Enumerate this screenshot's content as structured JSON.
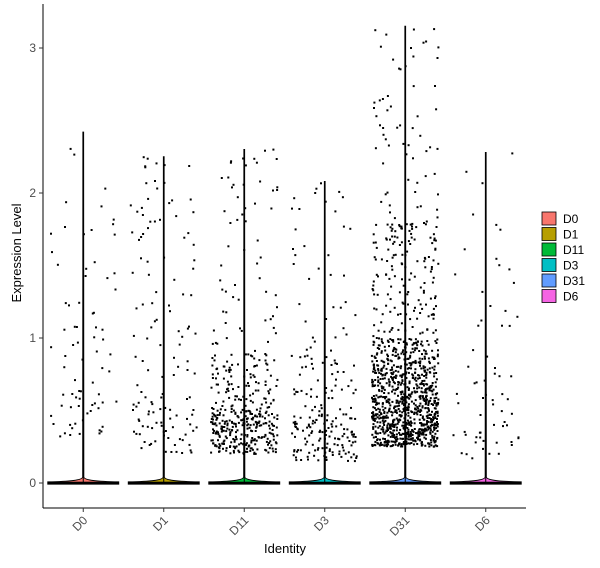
{
  "chart_data": {
    "type": "violin-jitter",
    "xlabel": "Identity",
    "ylabel": "Expression Level",
    "ylim": [
      -0.18,
      3.2
    ],
    "yticks": [
      0,
      1,
      2,
      3
    ],
    "grid": false,
    "legend_position": "right",
    "point_color": "#000000",
    "groups": [
      {
        "name": "D0",
        "color": "#F8766D",
        "max": 2.42,
        "zero_frac": 0.96,
        "n_nonzero": 75,
        "dist": [
          [
            0.3,
            0.6,
            0.35
          ],
          [
            0.6,
            1.1,
            0.35
          ],
          [
            1.1,
            2.42,
            0.3
          ]
        ]
      },
      {
        "name": "D1",
        "color": "#B79F00",
        "max": 2.25,
        "zero_frac": 0.95,
        "n_nonzero": 130,
        "dist": [
          [
            0.2,
            0.6,
            0.4
          ],
          [
            0.6,
            1.4,
            0.35
          ],
          [
            1.4,
            2.25,
            0.25
          ]
        ]
      },
      {
        "name": "D11",
        "color": "#00BA38",
        "max": 2.3,
        "zero_frac": 0.88,
        "n_nonzero": 420,
        "dist": [
          [
            0.2,
            0.5,
            0.6
          ],
          [
            0.5,
            0.9,
            0.28
          ],
          [
            0.9,
            2.3,
            0.12
          ]
        ]
      },
      {
        "name": "D3",
        "color": "#00BFC4",
        "max": 2.08,
        "zero_frac": 0.93,
        "n_nonzero": 210,
        "dist": [
          [
            0.15,
            0.45,
            0.6
          ],
          [
            0.45,
            0.9,
            0.25
          ],
          [
            0.9,
            2.08,
            0.15
          ]
        ]
      },
      {
        "name": "D31",
        "color": "#619CFF",
        "max": 3.15,
        "zero_frac": 0.7,
        "n_nonzero": 1150,
        "dist": [
          [
            0.25,
            0.6,
            0.5
          ],
          [
            0.6,
            1.0,
            0.32
          ],
          [
            1.0,
            1.8,
            0.13
          ],
          [
            1.8,
            3.15,
            0.05
          ]
        ]
      },
      {
        "name": "D6",
        "color": "#F564E3",
        "max": 2.28,
        "zero_frac": 0.97,
        "n_nonzero": 65,
        "dist": [
          [
            0.15,
            0.6,
            0.5
          ],
          [
            0.6,
            1.2,
            0.3
          ],
          [
            1.2,
            2.28,
            0.2
          ]
        ]
      }
    ]
  }
}
